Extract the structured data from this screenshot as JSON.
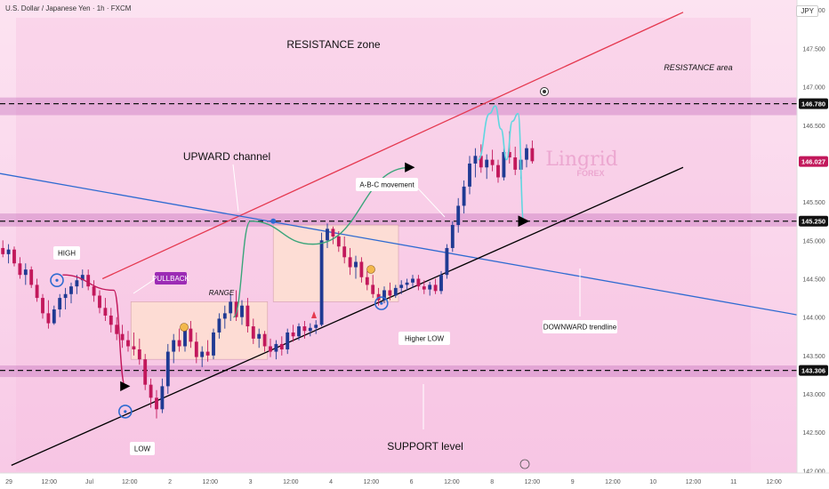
{
  "header": {
    "symbol_title": "U.S. Dollar / Japanese Yen · 1h · FXCM",
    "currency": "JPY"
  },
  "colors": {
    "bull": "#1f3a93",
    "bear": "#c2185b",
    "resistance_line": "#e53950",
    "downtrend_line": "#2f6bd1",
    "support_line": "#000000",
    "zone": "#c97bc0",
    "projection": "#5fd6e0",
    "arc": "#3aa57a",
    "marker": "#2f6bd1",
    "pullback_tag": "#9c2bb5"
  },
  "chart_data": {
    "type": "candlestick",
    "symbol": "USDJPY",
    "interval": "1h",
    "x_ticks": [
      "29",
      "12:00",
      "Jul",
      "12:00",
      "2",
      "12:00",
      "3",
      "12:00",
      "4",
      "12:00",
      "6",
      "12:00",
      "8",
      "12:00",
      "9",
      "12:00",
      "10",
      "12:00",
      "11",
      "12:00"
    ],
    "y_ticks": [
      148.0,
      147.5,
      147.0,
      146.5,
      146.0,
      145.5,
      145.0,
      144.5,
      144.0,
      143.5,
      143.0,
      142.5,
      142.0
    ],
    "ylim": [
      141.97,
      148.13
    ],
    "xlim": [
      0,
      140
    ],
    "price_levels": [
      {
        "label": "146.780",
        "value": 146.78,
        "style": "dashed"
      },
      {
        "label": "146.027",
        "value": 146.027,
        "style": "current"
      },
      {
        "label": "145.250",
        "value": 145.25,
        "style": "dashed"
      },
      {
        "label": "143.306",
        "value": 143.306,
        "style": "dashed"
      }
    ],
    "candles": [
      {
        "o": 144.9,
        "h": 145.0,
        "l": 144.78,
        "c": 144.82
      },
      {
        "o": 144.82,
        "h": 144.95,
        "l": 144.7,
        "c": 144.88
      },
      {
        "o": 144.88,
        "h": 144.92,
        "l": 144.66,
        "c": 144.7
      },
      {
        "o": 144.7,
        "h": 144.78,
        "l": 144.5,
        "c": 144.55
      },
      {
        "o": 144.55,
        "h": 144.7,
        "l": 144.42,
        "c": 144.62
      },
      {
        "o": 144.62,
        "h": 144.66,
        "l": 144.38,
        "c": 144.42
      },
      {
        "o": 144.42,
        "h": 144.5,
        "l": 144.2,
        "c": 144.25
      },
      {
        "o": 144.25,
        "h": 144.3,
        "l": 143.98,
        "c": 144.05
      },
      {
        "o": 144.05,
        "h": 144.22,
        "l": 143.85,
        "c": 143.92
      },
      {
        "o": 143.92,
        "h": 144.15,
        "l": 143.9,
        "c": 144.1
      },
      {
        "o": 144.1,
        "h": 144.3,
        "l": 144.0,
        "c": 144.25
      },
      {
        "o": 144.25,
        "h": 144.38,
        "l": 144.1,
        "c": 144.3
      },
      {
        "o": 144.3,
        "h": 144.45,
        "l": 144.18,
        "c": 144.4
      },
      {
        "o": 144.4,
        "h": 144.55,
        "l": 144.3,
        "c": 144.48
      },
      {
        "o": 144.48,
        "h": 144.62,
        "l": 144.38,
        "c": 144.55
      },
      {
        "o": 144.55,
        "h": 144.62,
        "l": 144.35,
        "c": 144.4
      },
      {
        "o": 144.4,
        "h": 144.48,
        "l": 144.2,
        "c": 144.28
      },
      {
        "o": 144.28,
        "h": 144.35,
        "l": 144.05,
        "c": 144.12
      },
      {
        "o": 144.12,
        "h": 144.25,
        "l": 143.95,
        "c": 144.02
      },
      {
        "o": 144.02,
        "h": 144.12,
        "l": 143.8,
        "c": 143.9
      },
      {
        "o": 143.9,
        "h": 144.0,
        "l": 143.7,
        "c": 143.78
      },
      {
        "o": 143.78,
        "h": 143.9,
        "l": 143.6,
        "c": 143.7
      },
      {
        "o": 143.7,
        "h": 143.82,
        "l": 143.55,
        "c": 143.62
      },
      {
        "o": 143.62,
        "h": 143.8,
        "l": 143.5,
        "c": 143.58
      },
      {
        "o": 143.58,
        "h": 143.72,
        "l": 143.38,
        "c": 143.45
      },
      {
        "o": 143.45,
        "h": 143.52,
        "l": 143.05,
        "c": 143.12
      },
      {
        "o": 143.12,
        "h": 143.2,
        "l": 142.82,
        "c": 142.95
      },
      {
        "o": 142.95,
        "h": 143.05,
        "l": 142.68,
        "c": 142.8
      },
      {
        "o": 142.8,
        "h": 143.2,
        "l": 142.75,
        "c": 143.1
      },
      {
        "o": 143.1,
        "h": 143.65,
        "l": 143.0,
        "c": 143.55
      },
      {
        "o": 143.55,
        "h": 143.78,
        "l": 143.4,
        "c": 143.7
      },
      {
        "o": 143.7,
        "h": 143.85,
        "l": 143.55,
        "c": 143.62
      },
      {
        "o": 143.62,
        "h": 143.92,
        "l": 143.55,
        "c": 143.85
      },
      {
        "o": 143.85,
        "h": 143.95,
        "l": 143.6,
        "c": 143.68
      },
      {
        "o": 143.68,
        "h": 143.8,
        "l": 143.4,
        "c": 143.48
      },
      {
        "o": 143.48,
        "h": 143.62,
        "l": 143.35,
        "c": 143.55
      },
      {
        "o": 143.55,
        "h": 143.7,
        "l": 143.42,
        "c": 143.5
      },
      {
        "o": 143.5,
        "h": 143.85,
        "l": 143.45,
        "c": 143.8
      },
      {
        "o": 143.8,
        "h": 144.05,
        "l": 143.72,
        "c": 143.98
      },
      {
        "o": 143.98,
        "h": 144.15,
        "l": 143.85,
        "c": 144.05
      },
      {
        "o": 144.05,
        "h": 144.3,
        "l": 143.95,
        "c": 144.2
      },
      {
        "o": 144.2,
        "h": 144.35,
        "l": 143.95,
        "c": 144.0
      },
      {
        "o": 144.0,
        "h": 144.22,
        "l": 143.9,
        "c": 144.15
      },
      {
        "o": 144.15,
        "h": 144.25,
        "l": 143.8,
        "c": 143.88
      },
      {
        "o": 143.88,
        "h": 143.98,
        "l": 143.65,
        "c": 143.72
      },
      {
        "o": 143.72,
        "h": 143.85,
        "l": 143.6,
        "c": 143.78
      },
      {
        "o": 143.78,
        "h": 143.82,
        "l": 143.55,
        "c": 143.62
      },
      {
        "o": 143.62,
        "h": 143.72,
        "l": 143.48,
        "c": 143.55
      },
      {
        "o": 143.55,
        "h": 143.7,
        "l": 143.45,
        "c": 143.65
      },
      {
        "o": 143.65,
        "h": 143.75,
        "l": 143.5,
        "c": 143.58
      },
      {
        "o": 143.58,
        "h": 143.85,
        "l": 143.52,
        "c": 143.8
      },
      {
        "o": 143.8,
        "h": 143.9,
        "l": 143.68,
        "c": 143.75
      },
      {
        "o": 143.75,
        "h": 143.92,
        "l": 143.7,
        "c": 143.88
      },
      {
        "o": 143.88,
        "h": 143.95,
        "l": 143.72,
        "c": 143.82
      },
      {
        "o": 143.82,
        "h": 143.92,
        "l": 143.75,
        "c": 143.86
      },
      {
        "o": 143.86,
        "h": 143.96,
        "l": 143.78,
        "c": 143.9
      },
      {
        "o": 143.9,
        "h": 145.1,
        "l": 143.88,
        "c": 145.0
      },
      {
        "o": 145.0,
        "h": 145.22,
        "l": 144.9,
        "c": 145.15
      },
      {
        "o": 145.15,
        "h": 145.18,
        "l": 144.95,
        "c": 145.05
      },
      {
        "o": 145.05,
        "h": 145.12,
        "l": 144.85,
        "c": 144.92
      },
      {
        "o": 144.92,
        "h": 145.05,
        "l": 144.7,
        "c": 144.78
      },
      {
        "o": 144.78,
        "h": 144.9,
        "l": 144.55,
        "c": 144.65
      },
      {
        "o": 144.65,
        "h": 144.8,
        "l": 144.5,
        "c": 144.72
      },
      {
        "o": 144.72,
        "h": 144.78,
        "l": 144.45,
        "c": 144.52
      },
      {
        "o": 144.52,
        "h": 144.6,
        "l": 144.35,
        "c": 144.42
      },
      {
        "o": 144.42,
        "h": 144.55,
        "l": 144.25,
        "c": 144.3
      },
      {
        "o": 144.3,
        "h": 144.38,
        "l": 144.15,
        "c": 144.22
      },
      {
        "o": 144.22,
        "h": 144.4,
        "l": 144.18,
        "c": 144.35
      },
      {
        "o": 144.35,
        "h": 144.45,
        "l": 144.22,
        "c": 144.28
      },
      {
        "o": 144.28,
        "h": 144.42,
        "l": 144.25,
        "c": 144.38
      },
      {
        "o": 144.38,
        "h": 144.48,
        "l": 144.3,
        "c": 144.42
      },
      {
        "o": 144.42,
        "h": 144.5,
        "l": 144.35,
        "c": 144.45
      },
      {
        "o": 144.45,
        "h": 144.55,
        "l": 144.38,
        "c": 144.5
      },
      {
        "o": 144.5,
        "h": 144.55,
        "l": 144.35,
        "c": 144.4
      },
      {
        "o": 144.4,
        "h": 144.48,
        "l": 144.3,
        "c": 144.36
      },
      {
        "o": 144.36,
        "h": 144.46,
        "l": 144.28,
        "c": 144.42
      },
      {
        "o": 144.42,
        "h": 144.5,
        "l": 144.3,
        "c": 144.34
      },
      {
        "o": 144.34,
        "h": 144.6,
        "l": 144.3,
        "c": 144.55
      },
      {
        "o": 144.55,
        "h": 144.95,
        "l": 144.5,
        "c": 144.9
      },
      {
        "o": 144.9,
        "h": 145.25,
        "l": 144.85,
        "c": 145.2
      },
      {
        "o": 145.2,
        "h": 145.55,
        "l": 145.1,
        "c": 145.45
      },
      {
        "o": 145.45,
        "h": 145.78,
        "l": 145.35,
        "c": 145.7
      },
      {
        "o": 145.7,
        "h": 146.1,
        "l": 145.6,
        "c": 146.0
      },
      {
        "o": 146.0,
        "h": 146.2,
        "l": 145.82,
        "c": 146.1
      },
      {
        "o": 146.1,
        "h": 146.25,
        "l": 145.88,
        "c": 145.95
      },
      {
        "o": 145.95,
        "h": 146.12,
        "l": 145.8,
        "c": 146.05
      },
      {
        "o": 146.05,
        "h": 146.18,
        "l": 145.9,
        "c": 145.98
      },
      {
        "o": 145.98,
        "h": 146.05,
        "l": 145.75,
        "c": 145.82
      },
      {
        "o": 145.82,
        "h": 146.2,
        "l": 145.78,
        "c": 146.15
      },
      {
        "o": 146.15,
        "h": 146.42,
        "l": 146.0,
        "c": 146.08
      },
      {
        "o": 146.08,
        "h": 146.22,
        "l": 145.85,
        "c": 145.92
      },
      {
        "o": 145.92,
        "h": 146.1,
        "l": 145.8,
        "c": 146.05
      },
      {
        "o": 146.05,
        "h": 146.25,
        "l": 145.95,
        "c": 146.2
      },
      {
        "o": 146.2,
        "h": 146.3,
        "l": 146.0,
        "c": 146.03
      }
    ],
    "trendlines": [
      {
        "name": "resistance",
        "from": {
          "x": 18,
          "y": 144.5
        },
        "to": {
          "x": 120,
          "y": 147.97
        }
      },
      {
        "name": "downtrend",
        "from": {
          "x": 0,
          "y": 145.87
        },
        "to": {
          "x": 140,
          "y": 144.03
        }
      },
      {
        "name": "support",
        "from": {
          "x": 2,
          "y": 142.07
        },
        "to": {
          "x": 120,
          "y": 145.95
        }
      }
    ],
    "zones": [
      {
        "name": "resistance-zone",
        "top": 146.86,
        "bottom": 146.63
      },
      {
        "name": "mid-zone",
        "top": 145.35,
        "bottom": 145.18
      },
      {
        "name": "support-zone",
        "top": 143.37,
        "bottom": 143.22
      }
    ],
    "ranges": [
      {
        "name": "range-box",
        "x0": 23,
        "x1": 47,
        "top": 144.2,
        "bottom": 143.45
      },
      {
        "name": "consolidation-box",
        "x0": 48,
        "x1": 70,
        "top": 145.2,
        "bottom": 144.2
      }
    ],
    "projection_path": [
      {
        "x": 84,
        "y": 146.05
      },
      {
        "x": 86,
        "y": 146.65
      },
      {
        "x": 87,
        "y": 146.75
      },
      {
        "x": 88,
        "y": 146.45
      },
      {
        "x": 89,
        "y": 146.05
      },
      {
        "x": 90,
        "y": 146.55
      },
      {
        "x": 91,
        "y": 146.65
      },
      {
        "x": 92,
        "y": 145.25
      }
    ],
    "abc_arc": [
      {
        "x": 41,
        "y": 144.0
      },
      {
        "x": 44,
        "y": 145.25
      },
      {
        "x": 55,
        "y": 144.95
      },
      {
        "x": 72,
        "y": 145.95
      }
    ],
    "pullback_arc": [
      {
        "x": 11,
        "y": 144.55
      },
      {
        "x": 20,
        "y": 144.35
      },
      {
        "x": 22,
        "y": 143.1
      }
    ],
    "markers": [
      {
        "name": "high-marker",
        "x": 10,
        "y": 144.48
      },
      {
        "name": "low-marker",
        "x": 22,
        "y": 142.77
      },
      {
        "name": "higher-low-marker",
        "x": 67,
        "y": 144.18
      }
    ]
  },
  "labels": {
    "resistance_zone": "RESISTANCE zone",
    "resistance_area": "RESISTANCE area",
    "upward_channel": "UPWARD channel",
    "abc_movement": "A-B-C movement",
    "high": "HIGH",
    "low": "LOW",
    "higher_low": "Higher LOW",
    "pullback": "PULLBACK",
    "range": "RANGE",
    "downward_trendline": "DOWNWARD trendline",
    "support_level": "SUPPORT level",
    "logo_main": "Lingrid",
    "logo_sub": "FOREX"
  }
}
